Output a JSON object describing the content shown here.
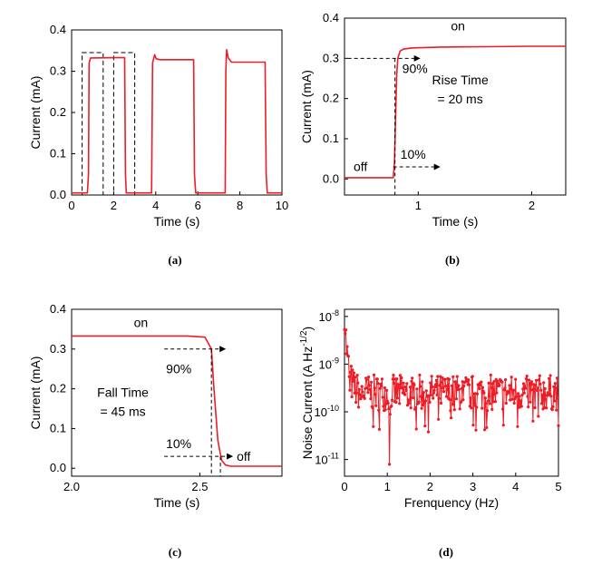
{
  "chart_data": [
    {
      "panel": "(a)",
      "type": "line",
      "xlabel": "Time (s)",
      "ylabel": "Current (mA)",
      "xlim": [
        0,
        10
      ],
      "ylim": [
        0,
        0.4
      ],
      "xticks": [
        "0",
        "2",
        "4",
        "6",
        "8",
        "10"
      ],
      "yticks": [
        "0.0",
        "0.1",
        "0.2",
        "0.3",
        "0.4"
      ],
      "color": "#ee1c25",
      "series": [
        {
          "x": [
            0,
            0.75,
            0.8,
            0.83,
            0.9,
            2.52,
            2.56,
            2.6,
            3.8,
            3.85,
            3.95,
            4.02,
            4.2,
            5.8,
            5.84,
            5.9,
            7.3,
            7.33,
            7.37,
            7.45,
            7.6,
            9.2,
            9.25,
            9.3,
            10
          ],
          "y": [
            0.005,
            0.005,
            0.05,
            0.32,
            0.332,
            0.333,
            0.05,
            0.005,
            0.005,
            0.32,
            0.34,
            0.33,
            0.328,
            0.328,
            0.05,
            0.005,
            0.005,
            0.3,
            0.352,
            0.332,
            0.322,
            0.322,
            0.05,
            0.005,
            0.005
          ]
        }
      ],
      "dashed_boxes": [
        {
          "x": [
            0.5,
            1.5
          ],
          "y": [
            0,
            0.345
          ]
        },
        {
          "x": [
            2.0,
            3.0
          ],
          "y": [
            0,
            0.345
          ]
        }
      ]
    },
    {
      "panel": "(b)",
      "type": "line",
      "xlabel": "Time (s)",
      "ylabel": "Current (mA)",
      "xlim": [
        0.35,
        2.3
      ],
      "ylim": [
        -0.04,
        0.4
      ],
      "xticks": [
        "1",
        "2"
      ],
      "yticks": [
        "0.0",
        "0.1",
        "0.2",
        "0.3",
        "0.4"
      ],
      "color": "#ee1c25",
      "series": [
        {
          "x": [
            0.35,
            0.78,
            0.79,
            0.8,
            0.81,
            0.82,
            0.84,
            0.87,
            0.95,
            1.2,
            1.6,
            2.0,
            2.3
          ],
          "y": [
            0.003,
            0.003,
            0.04,
            0.15,
            0.26,
            0.3,
            0.318,
            0.323,
            0.326,
            0.328,
            0.329,
            0.33,
            0.33
          ]
        }
      ],
      "annotations": [
        "on",
        "off",
        "90%",
        "10%",
        "Rise Time",
        "= 20 ms"
      ]
    },
    {
      "panel": "(c)",
      "type": "line",
      "xlabel": "Time (s)",
      "ylabel": "Current (mA)",
      "xlim": [
        2.0,
        2.82
      ],
      "ylim": [
        -0.02,
        0.4
      ],
      "xticks": [
        "2.0",
        "2.5"
      ],
      "yticks": [
        "0.0",
        "0.1",
        "0.2",
        "0.3",
        "0.4"
      ],
      "color": "#ee1c25",
      "series": [
        {
          "x": [
            2.0,
            2.45,
            2.52,
            2.545,
            2.555,
            2.57,
            2.585,
            2.6,
            2.62,
            2.82
          ],
          "y": [
            0.333,
            0.333,
            0.33,
            0.3,
            0.2,
            0.07,
            0.02,
            0.008,
            0.005,
            0.005
          ]
        }
      ],
      "annotations": [
        "on",
        "off",
        "90%",
        "10%",
        "Fall Time",
        "= 45 ms"
      ]
    },
    {
      "panel": "(d)",
      "type": "line",
      "scale": "log-y",
      "xlabel": "Frenquency (Hz)",
      "ylabel": "Noise Current (A Hz",
      "ylabel_sup": "-1/2",
      "ylabel_tail": ")",
      "xlim": [
        0,
        5
      ],
      "ylim_log10": [
        -11.35,
        -7.85
      ],
      "xticks": [
        "0",
        "1",
        "2",
        "3",
        "4",
        "5"
      ],
      "yticks": [
        {
          "base": "10",
          "exp": "-8"
        },
        {
          "base": "10",
          "exp": "-9"
        },
        {
          "base": "10",
          "exp": "-10"
        },
        {
          "base": "10",
          "exp": "-11"
        }
      ],
      "color": "#ee1c25",
      "markers": true,
      "n_points": 320,
      "x_max": 5,
      "noise_floor_log10": -9.6,
      "low_freq_start_log10": -7.9,
      "notable_min": {
        "x": 1.05,
        "log10y": -11.1
      }
    }
  ],
  "panel_labels": [
    "(a)",
    "(b)",
    "(c)",
    "(d)"
  ]
}
